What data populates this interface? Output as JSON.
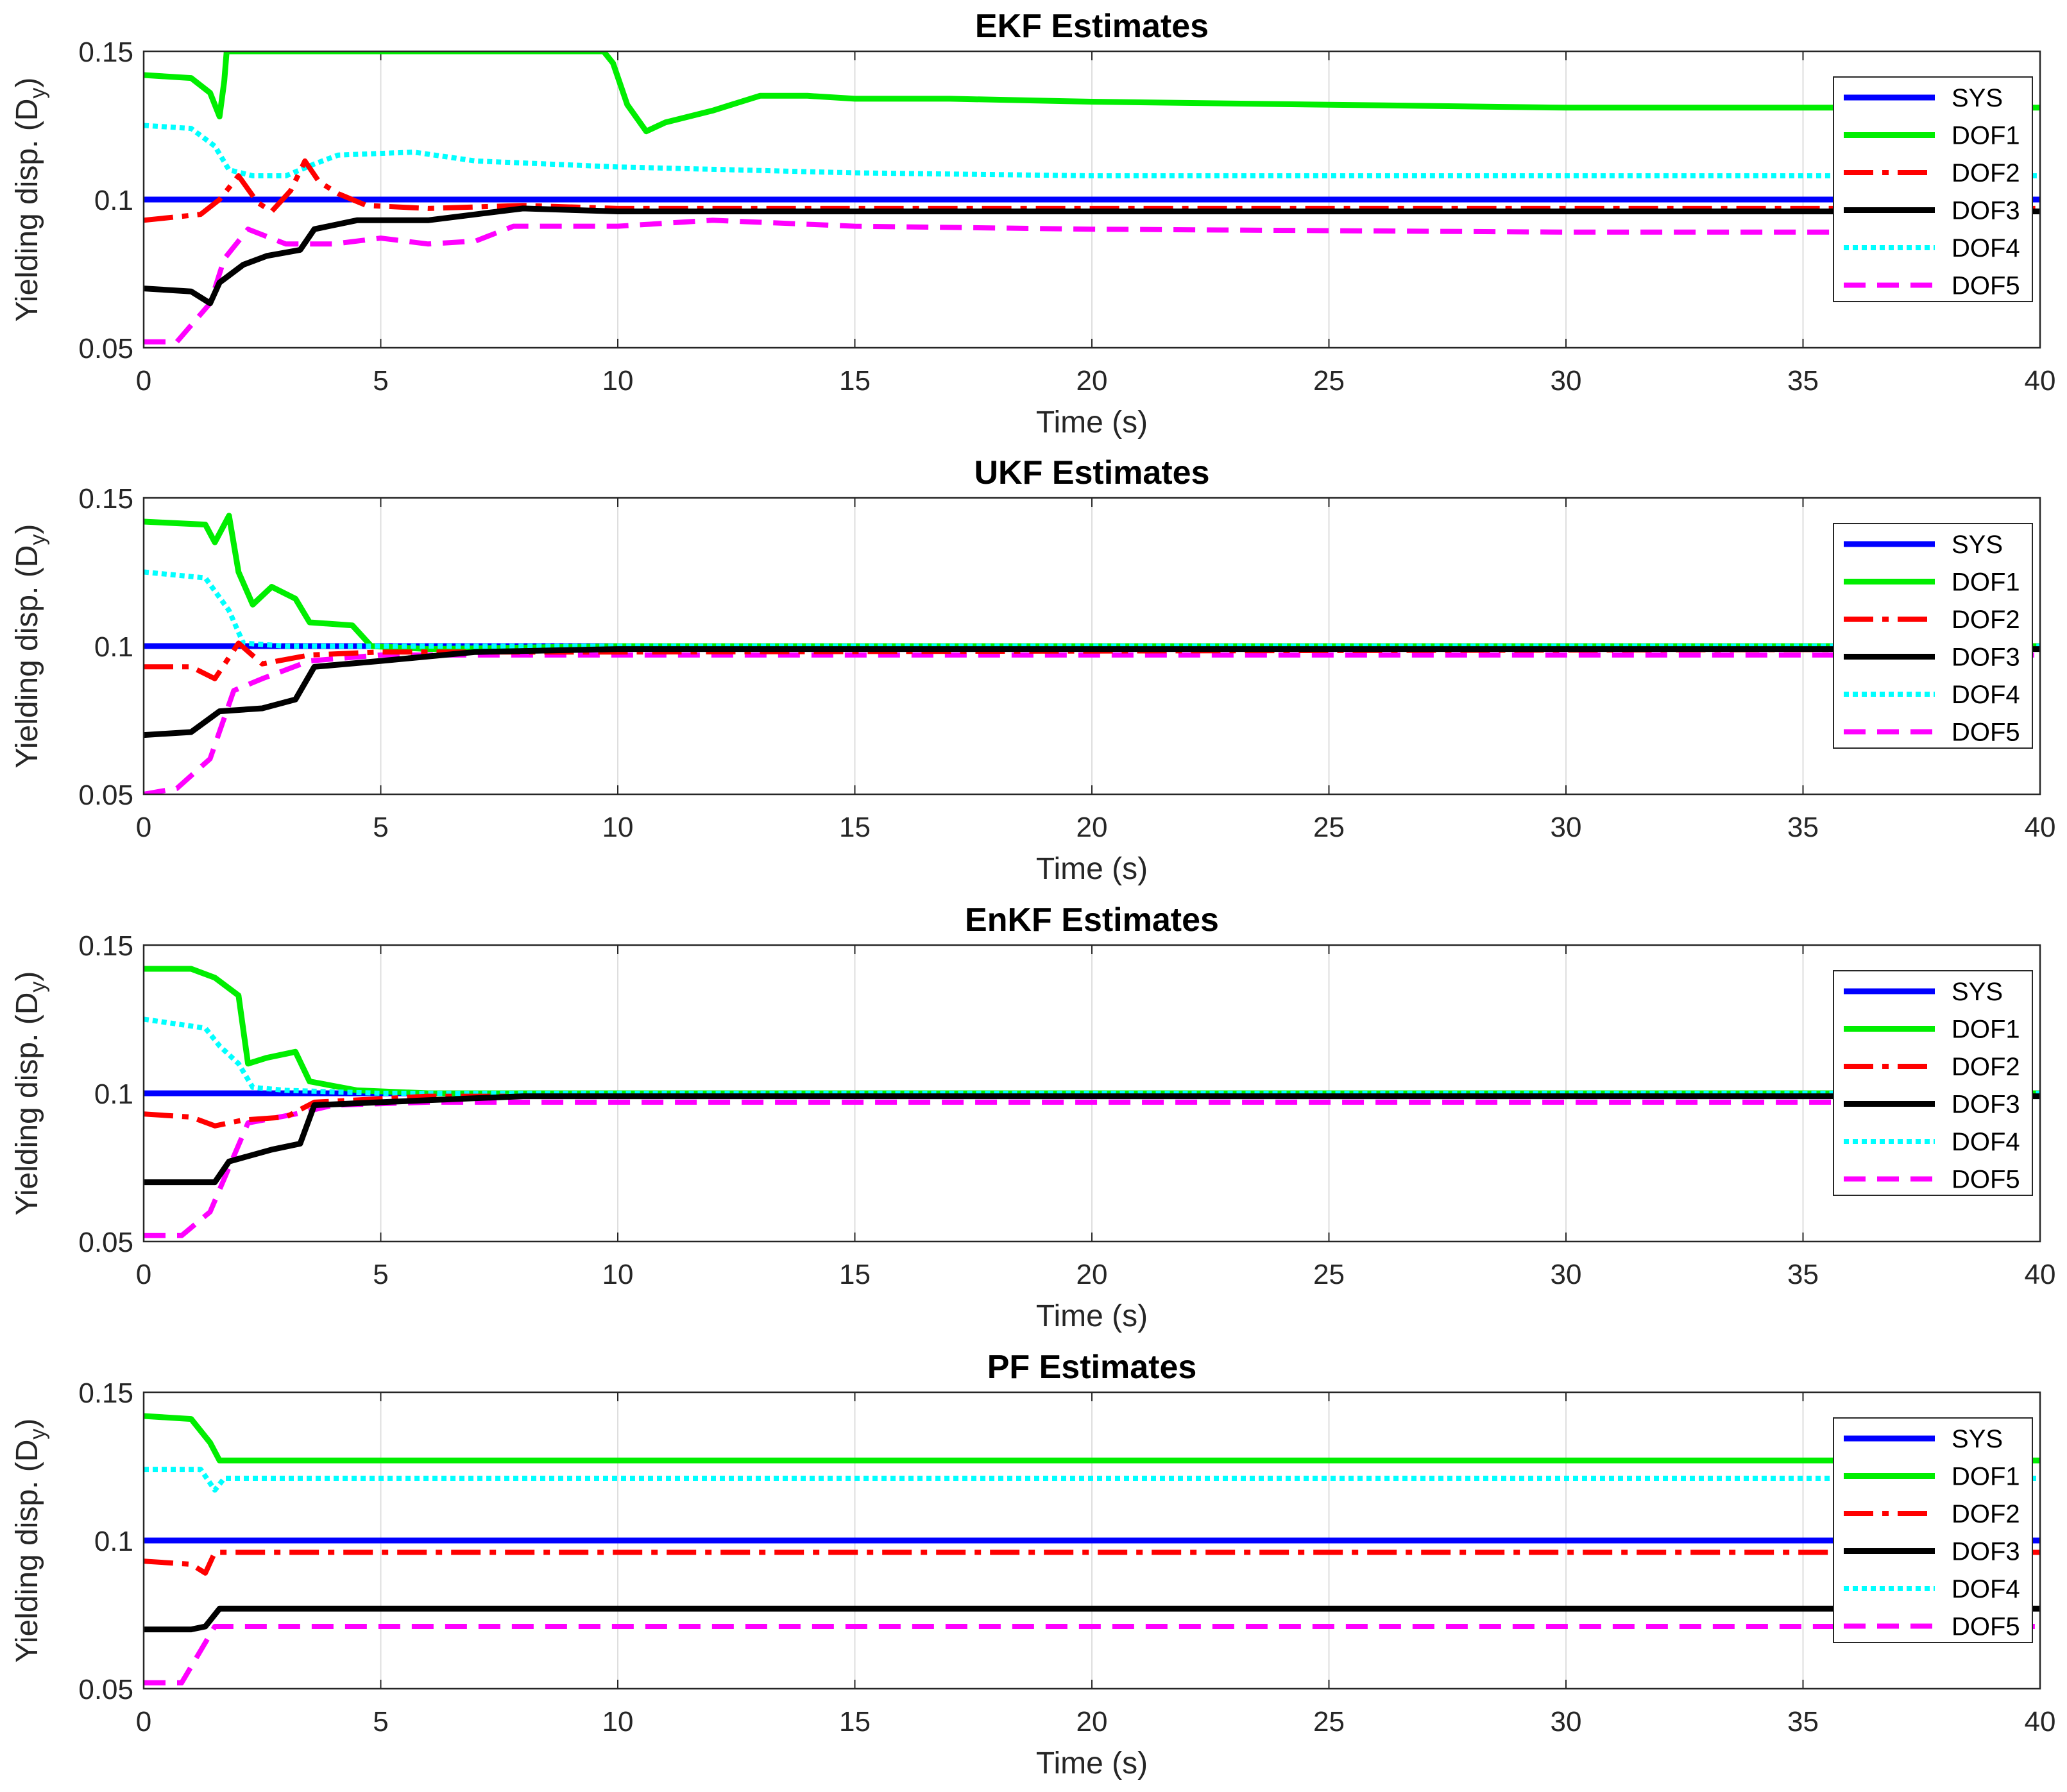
{
  "chart_data": [
    {
      "type": "line",
      "title": "EKF Estimates",
      "xlabel": "Time (s)",
      "ylabel_main": "Yielding disp. (D",
      "ylabel_sub": "y",
      "ylabel_close": ")",
      "xlim": [
        0,
        40
      ],
      "ylim": [
        0.05,
        0.15
      ],
      "xticks": [
        "0",
        "5",
        "10",
        "15",
        "20",
        "25",
        "30",
        "35",
        "40"
      ],
      "yticks": [
        "0.05",
        "0.1",
        "0.15"
      ],
      "grid": "vertical",
      "legend_position": "top-right",
      "series": [
        {
          "name": "SYS",
          "color": "#0000ff",
          "style": "solid",
          "points": [
            [
              0,
              0.1
            ],
            [
              40,
              0.1
            ]
          ]
        },
        {
          "name": "DOF1",
          "color": "#00ee00",
          "style": "solid",
          "points": [
            [
              0,
              0.142
            ],
            [
              1,
              0.141
            ],
            [
              1.4,
              0.136
            ],
            [
              1.6,
              0.128
            ],
            [
              1.7,
              0.14
            ],
            [
              1.75,
              0.15
            ],
            [
              9.7,
              0.15
            ],
            [
              9.9,
              0.146
            ],
            [
              10.2,
              0.132
            ],
            [
              10.6,
              0.123
            ],
            [
              11,
              0.126
            ],
            [
              12,
              0.13
            ],
            [
              13,
              0.135
            ],
            [
              14,
              0.135
            ],
            [
              15,
              0.134
            ],
            [
              17,
              0.134
            ],
            [
              20,
              0.133
            ],
            [
              25,
              0.132
            ],
            [
              30,
              0.131
            ],
            [
              35,
              0.131
            ],
            [
              40,
              0.131
            ]
          ]
        },
        {
          "name": "DOF2",
          "color": "#ff0000",
          "style": "dashdot",
          "points": [
            [
              0,
              0.093
            ],
            [
              1.2,
              0.095
            ],
            [
              1.6,
              0.1
            ],
            [
              2,
              0.108
            ],
            [
              2.4,
              0.099
            ],
            [
              2.7,
              0.096
            ],
            [
              3.1,
              0.103
            ],
            [
              3.4,
              0.113
            ],
            [
              3.7,
              0.106
            ],
            [
              4.1,
              0.102
            ],
            [
              4.7,
              0.098
            ],
            [
              6,
              0.097
            ],
            [
              8,
              0.098
            ],
            [
              10,
              0.097
            ],
            [
              20,
              0.097
            ],
            [
              30,
              0.097
            ],
            [
              40,
              0.097
            ]
          ]
        },
        {
          "name": "DOF3",
          "color": "#000000",
          "style": "solid",
          "points": [
            [
              0,
              0.07
            ],
            [
              1,
              0.069
            ],
            [
              1.4,
              0.065
            ],
            [
              1.6,
              0.072
            ],
            [
              2.1,
              0.078
            ],
            [
              2.6,
              0.081
            ],
            [
              3.3,
              0.083
            ],
            [
              3.6,
              0.09
            ],
            [
              4.5,
              0.093
            ],
            [
              6,
              0.093
            ],
            [
              8,
              0.097
            ],
            [
              10,
              0.096
            ],
            [
              20,
              0.096
            ],
            [
              30,
              0.096
            ],
            [
              40,
              0.096
            ]
          ]
        },
        {
          "name": "DOF4",
          "color": "#00ffff",
          "style": "dotted",
          "points": [
            [
              0,
              0.125
            ],
            [
              1,
              0.124
            ],
            [
              1.5,
              0.118
            ],
            [
              1.8,
              0.11
            ],
            [
              2.3,
              0.108
            ],
            [
              3,
              0.108
            ],
            [
              3.6,
              0.112
            ],
            [
              4.1,
              0.115
            ],
            [
              5.7,
              0.116
            ],
            [
              7,
              0.113
            ],
            [
              10,
              0.111
            ],
            [
              15,
              0.109
            ],
            [
              20,
              0.108
            ],
            [
              30,
              0.108
            ],
            [
              40,
              0.108
            ]
          ]
        },
        {
          "name": "DOF5",
          "color": "#ff00ff",
          "style": "dashed",
          "points": [
            [
              0,
              0.052
            ],
            [
              0.7,
              0.052
            ],
            [
              1.4,
              0.065
            ],
            [
              1.7,
              0.08
            ],
            [
              2.2,
              0.09
            ],
            [
              3,
              0.085
            ],
            [
              4,
              0.085
            ],
            [
              5,
              0.087
            ],
            [
              6,
              0.085
            ],
            [
              7,
              0.086
            ],
            [
              7.8,
              0.091
            ],
            [
              10,
              0.091
            ],
            [
              12,
              0.093
            ],
            [
              15,
              0.091
            ],
            [
              20,
              0.09
            ],
            [
              30,
              0.089
            ],
            [
              40,
              0.089
            ]
          ]
        }
      ]
    },
    {
      "type": "line",
      "title": "UKF Estimates",
      "xlabel": "Time (s)",
      "ylabel_main": "Yielding disp. (D",
      "ylabel_sub": "y",
      "ylabel_close": ")",
      "xlim": [
        0,
        40
      ],
      "ylim": [
        0.05,
        0.15
      ],
      "xticks": [
        "0",
        "5",
        "10",
        "15",
        "20",
        "25",
        "30",
        "35",
        "40"
      ],
      "yticks": [
        "0.05",
        "0.1",
        "0.15"
      ],
      "grid": "vertical",
      "legend_position": "top-right",
      "series": [
        {
          "name": "SYS",
          "color": "#0000ff",
          "style": "solid",
          "points": [
            [
              0,
              0.1
            ],
            [
              40,
              0.1
            ]
          ]
        },
        {
          "name": "DOF1",
          "color": "#00ee00",
          "style": "solid",
          "points": [
            [
              0,
              0.142
            ],
            [
              1.3,
              0.141
            ],
            [
              1.5,
              0.135
            ],
            [
              1.8,
              0.144
            ],
            [
              2,
              0.125
            ],
            [
              2.3,
              0.114
            ],
            [
              2.7,
              0.12
            ],
            [
              3.2,
              0.116
            ],
            [
              3.5,
              0.108
            ],
            [
              4.4,
              0.107
            ],
            [
              4.8,
              0.1
            ],
            [
              6,
              0.099
            ],
            [
              10,
              0.1
            ],
            [
              40,
              0.1
            ]
          ]
        },
        {
          "name": "DOF2",
          "color": "#ff0000",
          "style": "dashdot",
          "points": [
            [
              0,
              0.093
            ],
            [
              1,
              0.093
            ],
            [
              1.5,
              0.089
            ],
            [
              2,
              0.101
            ],
            [
              2.5,
              0.094
            ],
            [
              3.5,
              0.097
            ],
            [
              5,
              0.098
            ],
            [
              10,
              0.098
            ],
            [
              40,
              0.099
            ]
          ]
        },
        {
          "name": "DOF3",
          "color": "#000000",
          "style": "solid",
          "points": [
            [
              0,
              0.07
            ],
            [
              1,
              0.071
            ],
            [
              1.6,
              0.078
            ],
            [
              2.5,
              0.079
            ],
            [
              3.2,
              0.082
            ],
            [
              3.6,
              0.093
            ],
            [
              5,
              0.095
            ],
            [
              7,
              0.098
            ],
            [
              10,
              0.099
            ],
            [
              40,
              0.099
            ]
          ]
        },
        {
          "name": "DOF4",
          "color": "#00ffff",
          "style": "dotted",
          "points": [
            [
              0,
              0.125
            ],
            [
              1.3,
              0.123
            ],
            [
              1.8,
              0.112
            ],
            [
              2.1,
              0.101
            ],
            [
              3,
              0.1
            ],
            [
              5,
              0.1
            ],
            [
              10,
              0.1
            ],
            [
              40,
              0.1
            ]
          ]
        },
        {
          "name": "DOF5",
          "color": "#ff00ff",
          "style": "dashed",
          "points": [
            [
              0,
              0.05
            ],
            [
              0.7,
              0.052
            ],
            [
              1.4,
              0.062
            ],
            [
              1.9,
              0.085
            ],
            [
              2.5,
              0.089
            ],
            [
              3.5,
              0.095
            ],
            [
              5,
              0.097
            ],
            [
              10,
              0.097
            ],
            [
              40,
              0.097
            ]
          ]
        }
      ]
    },
    {
      "type": "line",
      "title": "EnKF Estimates",
      "xlabel": "Time (s)",
      "ylabel_main": "Yielding disp. (D",
      "ylabel_sub": "y",
      "ylabel_close": ")",
      "xlim": [
        0,
        40
      ],
      "ylim": [
        0.05,
        0.15
      ],
      "xticks": [
        "0",
        "5",
        "10",
        "15",
        "20",
        "25",
        "30",
        "35",
        "40"
      ],
      "yticks": [
        "0.05",
        "0.1",
        "0.15"
      ],
      "grid": "vertical",
      "legend_position": "top-right",
      "series": [
        {
          "name": "SYS",
          "color": "#0000ff",
          "style": "solid",
          "points": [
            [
              0,
              0.1
            ],
            [
              40,
              0.1
            ]
          ]
        },
        {
          "name": "DOF1",
          "color": "#00ee00",
          "style": "solid",
          "points": [
            [
              0,
              0.142
            ],
            [
              1,
              0.142
            ],
            [
              1.5,
              0.139
            ],
            [
              2,
              0.133
            ],
            [
              2.2,
              0.11
            ],
            [
              2.6,
              0.112
            ],
            [
              3.2,
              0.114
            ],
            [
              3.5,
              0.104
            ],
            [
              4.5,
              0.101
            ],
            [
              6,
              0.1
            ],
            [
              40,
              0.1
            ]
          ]
        },
        {
          "name": "DOF2",
          "color": "#ff0000",
          "style": "dashdot",
          "points": [
            [
              0,
              0.093
            ],
            [
              1,
              0.092
            ],
            [
              1.5,
              0.089
            ],
            [
              2.1,
              0.091
            ],
            [
              3,
              0.092
            ],
            [
              3.6,
              0.097
            ],
            [
              6,
              0.099
            ],
            [
              40,
              0.099
            ]
          ]
        },
        {
          "name": "DOF3",
          "color": "#000000",
          "style": "solid",
          "points": [
            [
              0,
              0.07
            ],
            [
              1.5,
              0.07
            ],
            [
              1.8,
              0.077
            ],
            [
              2.7,
              0.081
            ],
            [
              3.3,
              0.083
            ],
            [
              3.6,
              0.096
            ],
            [
              5,
              0.097
            ],
            [
              8,
              0.099
            ],
            [
              40,
              0.099
            ]
          ]
        },
        {
          "name": "DOF4",
          "color": "#00ffff",
          "style": "dotted",
          "points": [
            [
              0,
              0.125
            ],
            [
              1.3,
              0.122
            ],
            [
              1.6,
              0.116
            ],
            [
              2,
              0.11
            ],
            [
              2.3,
              0.102
            ],
            [
              3,
              0.101
            ],
            [
              5,
              0.1
            ],
            [
              40,
              0.1
            ]
          ]
        },
        {
          "name": "DOF5",
          "color": "#ff00ff",
          "style": "dashed",
          "points": [
            [
              0,
              0.052
            ],
            [
              0.8,
              0.052
            ],
            [
              1.4,
              0.06
            ],
            [
              1.8,
              0.075
            ],
            [
              2.2,
              0.09
            ],
            [
              3.2,
              0.093
            ],
            [
              4,
              0.096
            ],
            [
              6,
              0.097
            ],
            [
              40,
              0.097
            ]
          ]
        }
      ]
    },
    {
      "type": "line",
      "title": "PF Estimates",
      "xlabel": "Time (s)",
      "ylabel_main": "Yielding disp. (D",
      "ylabel_sub": "y",
      "ylabel_close": ")",
      "xlim": [
        0,
        40
      ],
      "ylim": [
        0.05,
        0.15
      ],
      "xticks": [
        "0",
        "5",
        "10",
        "15",
        "20",
        "25",
        "30",
        "35",
        "40"
      ],
      "yticks": [
        "0.05",
        "0.1",
        "0.15"
      ],
      "grid": "vertical",
      "legend_position": "top-right",
      "series": [
        {
          "name": "SYS",
          "color": "#0000ff",
          "style": "solid",
          "points": [
            [
              0,
              0.1
            ],
            [
              40,
              0.1
            ]
          ]
        },
        {
          "name": "DOF1",
          "color": "#00ee00",
          "style": "solid",
          "points": [
            [
              0,
              0.142
            ],
            [
              1,
              0.141
            ],
            [
              1.4,
              0.133
            ],
            [
              1.6,
              0.127
            ],
            [
              40,
              0.127
            ]
          ]
        },
        {
          "name": "DOF2",
          "color": "#ff0000",
          "style": "dashdot",
          "points": [
            [
              0,
              0.093
            ],
            [
              1,
              0.092
            ],
            [
              1.3,
              0.089
            ],
            [
              1.5,
              0.096
            ],
            [
              40,
              0.096
            ]
          ]
        },
        {
          "name": "DOF3",
          "color": "#000000",
          "style": "solid",
          "points": [
            [
              0,
              0.07
            ],
            [
              1,
              0.07
            ],
            [
              1.3,
              0.071
            ],
            [
              1.6,
              0.077
            ],
            [
              40,
              0.077
            ]
          ]
        },
        {
          "name": "DOF4",
          "color": "#00ffff",
          "style": "dotted",
          "points": [
            [
              0,
              0.124
            ],
            [
              1.2,
              0.124
            ],
            [
              1.5,
              0.117
            ],
            [
              1.7,
              0.121
            ],
            [
              40,
              0.121
            ]
          ]
        },
        {
          "name": "DOF5",
          "color": "#ff00ff",
          "style": "dashed",
          "points": [
            [
              0,
              0.052
            ],
            [
              0.8,
              0.052
            ],
            [
              1.5,
              0.071
            ],
            [
              40,
              0.071
            ]
          ]
        }
      ]
    }
  ]
}
